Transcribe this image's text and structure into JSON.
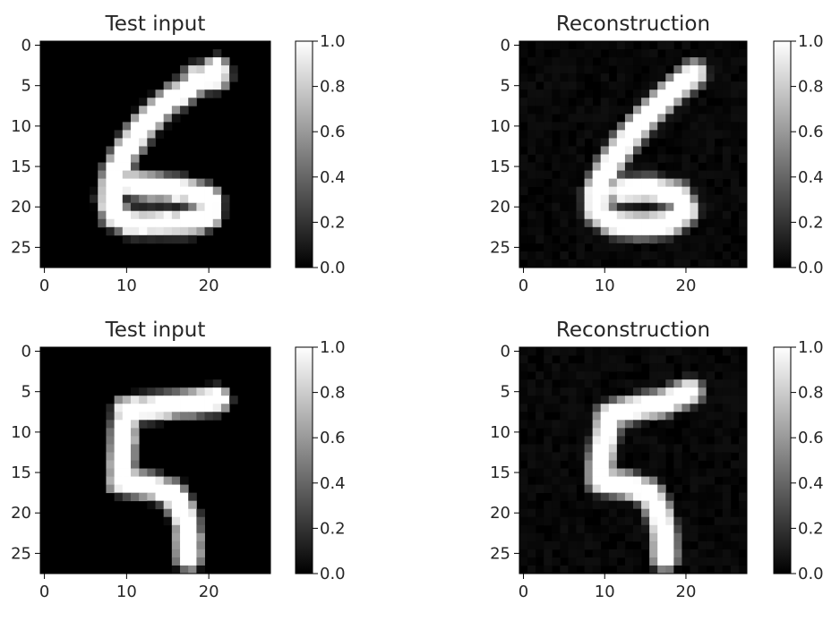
{
  "chart_data": [
    {
      "type": "heatmap",
      "title": "Test input",
      "digit": "6",
      "image_size": [
        28,
        28
      ],
      "xticks": [
        0,
        10,
        20
      ],
      "yticks": [
        0,
        5,
        10,
        15,
        20,
        25
      ],
      "colorbar": {
        "range": [
          0,
          1
        ],
        "ticks": [
          "0.0",
          "0.2",
          "0.4",
          "0.6",
          "0.8",
          "1.0"
        ]
      },
      "colormap": "gray",
      "noise": 0,
      "strokes": [
        [
          [
            21,
            3
          ],
          [
            18,
            5
          ],
          [
            15,
            7
          ],
          [
            12,
            10
          ],
          [
            10,
            13
          ],
          [
            8.5,
            16
          ],
          [
            8,
            19
          ],
          [
            8.5,
            21
          ],
          [
            10.5,
            22
          ],
          [
            14,
            22
          ],
          [
            17.5,
            22
          ],
          [
            20,
            21
          ],
          [
            20,
            19
          ],
          [
            17,
            18
          ],
          [
            13,
            17.5
          ],
          [
            9.5,
            17
          ]
        ],
        [
          [
            18.5,
            4
          ],
          [
            21,
            4
          ]
        ]
      ]
    },
    {
      "type": "heatmap",
      "title": "Reconstruction",
      "digit": "6",
      "image_size": [
        28,
        28
      ],
      "xticks": [
        0,
        10,
        20
      ],
      "yticks": [
        0,
        5,
        10,
        15,
        20,
        25
      ],
      "colorbar": {
        "range": [
          0,
          1
        ],
        "ticks": [
          "0.0",
          "0.2",
          "0.4",
          "0.6",
          "0.8",
          "1.0"
        ]
      },
      "colormap": "gray",
      "noise": 0.06,
      "strokes": [
        [
          [
            21,
            3.5
          ],
          [
            18,
            6
          ],
          [
            15,
            9
          ],
          [
            12.5,
            12
          ],
          [
            10.5,
            15
          ],
          [
            9,
            18
          ],
          [
            9,
            20.5
          ],
          [
            11,
            22
          ],
          [
            14.5,
            22.3
          ],
          [
            18,
            22
          ],
          [
            20,
            20.5
          ],
          [
            19,
            18.5
          ],
          [
            15.5,
            17.8
          ],
          [
            12,
            18
          ]
        ]
      ]
    },
    {
      "type": "heatmap",
      "title": "Test input",
      "digit": "5",
      "image_size": [
        28,
        28
      ],
      "xticks": [
        0,
        10,
        20
      ],
      "yticks": [
        0,
        5,
        10,
        15,
        20,
        25
      ],
      "colorbar": {
        "range": [
          0,
          1
        ],
        "ticks": [
          "0.0",
          "0.2",
          "0.4",
          "0.6",
          "0.8",
          "1.0"
        ]
      },
      "colormap": "gray",
      "noise": 0,
      "strokes": [
        [
          [
            21,
            6
          ],
          [
            17,
            6.5
          ],
          [
            13,
            7
          ],
          [
            10,
            7.2
          ]
        ],
        [
          [
            10,
            7.2
          ],
          [
            9.6,
            11
          ],
          [
            9.4,
            14
          ],
          [
            9.2,
            16
          ]
        ],
        [
          [
            9.2,
            16
          ],
          [
            12,
            16.5
          ],
          [
            15.5,
            17.5
          ],
          [
            17,
            20
          ],
          [
            17.5,
            23
          ],
          [
            17.5,
            25.5
          ]
        ]
      ]
    },
    {
      "type": "heatmap",
      "title": "Reconstruction",
      "digit": "5",
      "image_size": [
        28,
        28
      ],
      "xticks": [
        0,
        10,
        20
      ],
      "yticks": [
        0,
        5,
        10,
        15,
        20,
        25
      ],
      "colorbar": {
        "range": [
          0,
          1
        ],
        "ticks": [
          "0.0",
          "0.2",
          "0.4",
          "0.6",
          "0.8",
          "1.0"
        ]
      },
      "colormap": "gray",
      "noise": 0.06,
      "strokes": [
        [
          [
            20.5,
            5
          ],
          [
            17,
            6.5
          ],
          [
            13,
            7.2
          ],
          [
            10.5,
            8
          ]
        ],
        [
          [
            10.5,
            8
          ],
          [
            10,
            11
          ],
          [
            9.5,
            14
          ],
          [
            9.5,
            16
          ]
        ],
        [
          [
            9.5,
            16
          ],
          [
            12.5,
            16.5
          ],
          [
            15.5,
            17.5
          ],
          [
            16.8,
            20
          ],
          [
            17.3,
            23
          ],
          [
            17.4,
            25.5
          ]
        ]
      ]
    }
  ]
}
